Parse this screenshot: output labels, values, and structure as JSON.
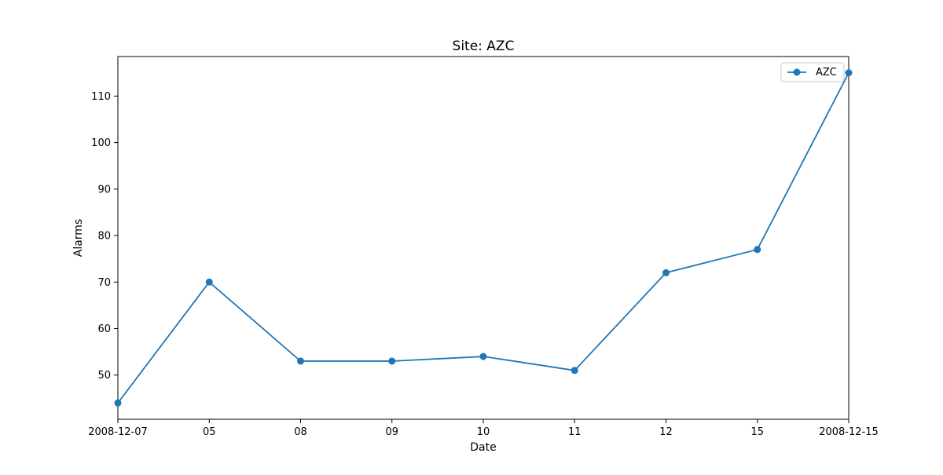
{
  "chart_data": {
    "type": "line",
    "title": "Site: AZC",
    "xlabel": "Date",
    "ylabel": "Alarms",
    "categories": [
      "2008-12-07",
      "05",
      "08",
      "09",
      "10",
      "11",
      "12",
      "15",
      "2008-12-15"
    ],
    "series": [
      {
        "name": "AZC",
        "values": [
          44,
          70,
          53,
          53,
          54,
          51,
          72,
          77,
          115
        ],
        "color": "#1f77b4",
        "marker": "circle"
      }
    ],
    "ylim": [
      40.5,
      118.5
    ],
    "yticks": [
      50,
      60,
      70,
      80,
      90,
      100,
      110
    ],
    "grid": false,
    "legend_position": "top-right"
  }
}
